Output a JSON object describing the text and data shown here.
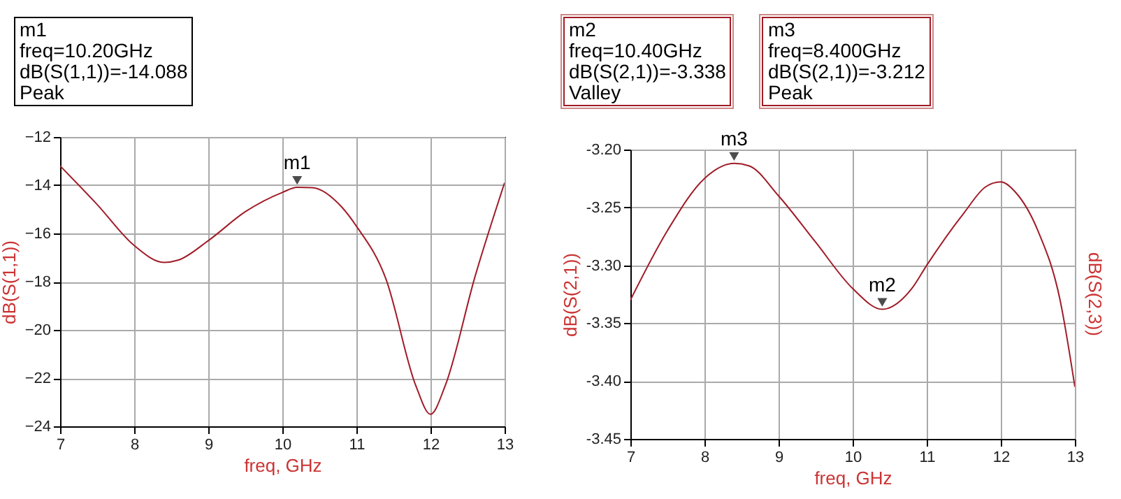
{
  "chart_data": [
    {
      "type": "line",
      "xlabel": "freq, GHz",
      "ylabel": "dB(S(1,1))",
      "x": [
        7,
        7.5,
        8,
        8.4,
        8.6,
        9,
        9.5,
        10,
        10.2,
        10.4,
        10.8,
        11,
        11.4,
        11.8,
        12,
        12.2,
        12.6,
        13
      ],
      "series": [
        {
          "color": "#a01c28",
          "values": [
            -13.2,
            -14.8,
            -16.5,
            -17.2,
            -17.1,
            -16.3,
            -15.1,
            -14.3,
            -14.088,
            -14.1,
            -14.9,
            -15.7,
            -17.9,
            -22.3,
            -23.5,
            -22.3,
            -17.8,
            -13.9
          ]
        }
      ],
      "xlim": [
        7,
        13
      ],
      "xticks": [
        7,
        8,
        9,
        10,
        11,
        12,
        13
      ],
      "ylim": [
        -24,
        -12
      ],
      "yticks": [
        -24,
        -22,
        -20,
        -18,
        -16,
        -14,
        -12
      ],
      "grid": true,
      "marker": "none",
      "line_style": "solid",
      "annotations": [
        "m1\nfreq=10.20GHz\ndB(S(1,1))=-14.088\nPeak",
        {
          "text": "m1",
          "x": 10.2,
          "y": -14.088
        }
      ]
    },
    {
      "type": "line",
      "xlabel": "freq, GHz",
      "ylabel": "dB(S(2,1))",
      "y2label": "dB(S(2,3))",
      "x": [
        7,
        7.5,
        8,
        8.4,
        8.6,
        9,
        9.5,
        10,
        10.4,
        10.8,
        11,
        11.5,
        11.8,
        12,
        12.2,
        12.5,
        12.8,
        13
      ],
      "series": [
        {
          "color": "#a01c28",
          "values": [
            -3.33,
            -3.27,
            -3.225,
            -3.212,
            -3.214,
            -3.24,
            -3.28,
            -3.32,
            -3.338,
            -3.32,
            -3.3,
            -3.255,
            -3.232,
            -3.228,
            -3.237,
            -3.27,
            -3.33,
            -3.405
          ]
        }
      ],
      "xlim": [
        7,
        13
      ],
      "xticks": [
        7,
        8,
        9,
        10,
        11,
        12,
        13
      ],
      "ylim": [
        -3.45,
        -3.2
      ],
      "yticks": [
        {
          "value": -3.45,
          "label": "-3.45"
        },
        {
          "value": -3.4,
          "label": "-3.40"
        },
        {
          "value": -3.35,
          "label": "-3.35"
        },
        {
          "value": -3.3,
          "label": "-3.30"
        },
        {
          "value": -3.25,
          "label": "-3.25"
        },
        {
          "value": -3.2,
          "label": "-3.20"
        }
      ],
      "grid": true,
      "marker": "none",
      "line_style": "solid",
      "annotations": [
        "m2\nfreq=10.40GHz\ndB(S(2,1))=-3.338\nValley",
        "m3\nfreq=8.400GHz\ndB(S(2,1))=-3.212\nPeak",
        {
          "text": "m2",
          "x": 10.4,
          "y": -3.338
        },
        {
          "text": "m3",
          "x": 8.4,
          "y": -3.212
        }
      ]
    }
  ]
}
